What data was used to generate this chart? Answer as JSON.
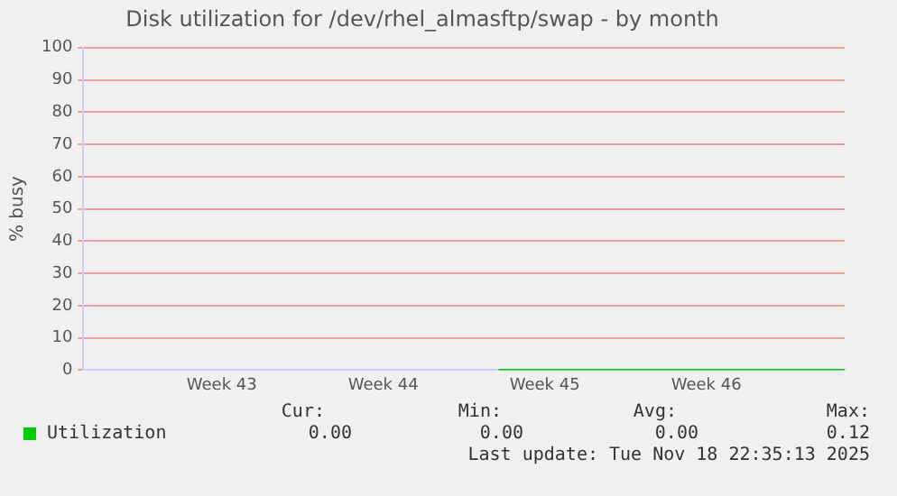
{
  "chart_data": {
    "type": "line",
    "title": "Disk utilization for /dev/rhel_almasftp/swap - by month",
    "ylabel": "% busy",
    "categories": [
      null,
      null,
      null,
      null,
      null,
      null,
      "Week 43",
      null,
      null,
      null,
      null,
      null,
      null,
      "Week 44",
      null,
      null,
      null,
      null,
      null,
      null,
      "Week 45",
      null,
      null,
      null,
      null,
      null,
      null,
      "Week 46",
      null,
      null,
      null,
      null,
      null,
      null
    ],
    "series": [
      {
        "name": "Utilization",
        "color": "#00cc00",
        "values": [
          null,
          null,
          null,
          null,
          null,
          null,
          null,
          null,
          null,
          null,
          null,
          null,
          null,
          null,
          null,
          null,
          null,
          null,
          0,
          0,
          0,
          0,
          0,
          0,
          0,
          0,
          0,
          0,
          0,
          0,
          0,
          0,
          0,
          0
        ]
      }
    ],
    "ylim": [
      0,
      100
    ],
    "yticks": [
      0,
      10,
      20,
      30,
      40,
      50,
      60,
      70,
      80,
      90,
      100
    ],
    "grid": "y",
    "legend": "bottom left",
    "marker": "none",
    "annotations": [
      "Cur:",
      "Min:",
      "Avg:",
      "Max:",
      "0.00",
      "0.00",
      "0.00",
      "0.12",
      "Last update: Tue Nov 18 22:35:13 2025"
    ]
  }
}
